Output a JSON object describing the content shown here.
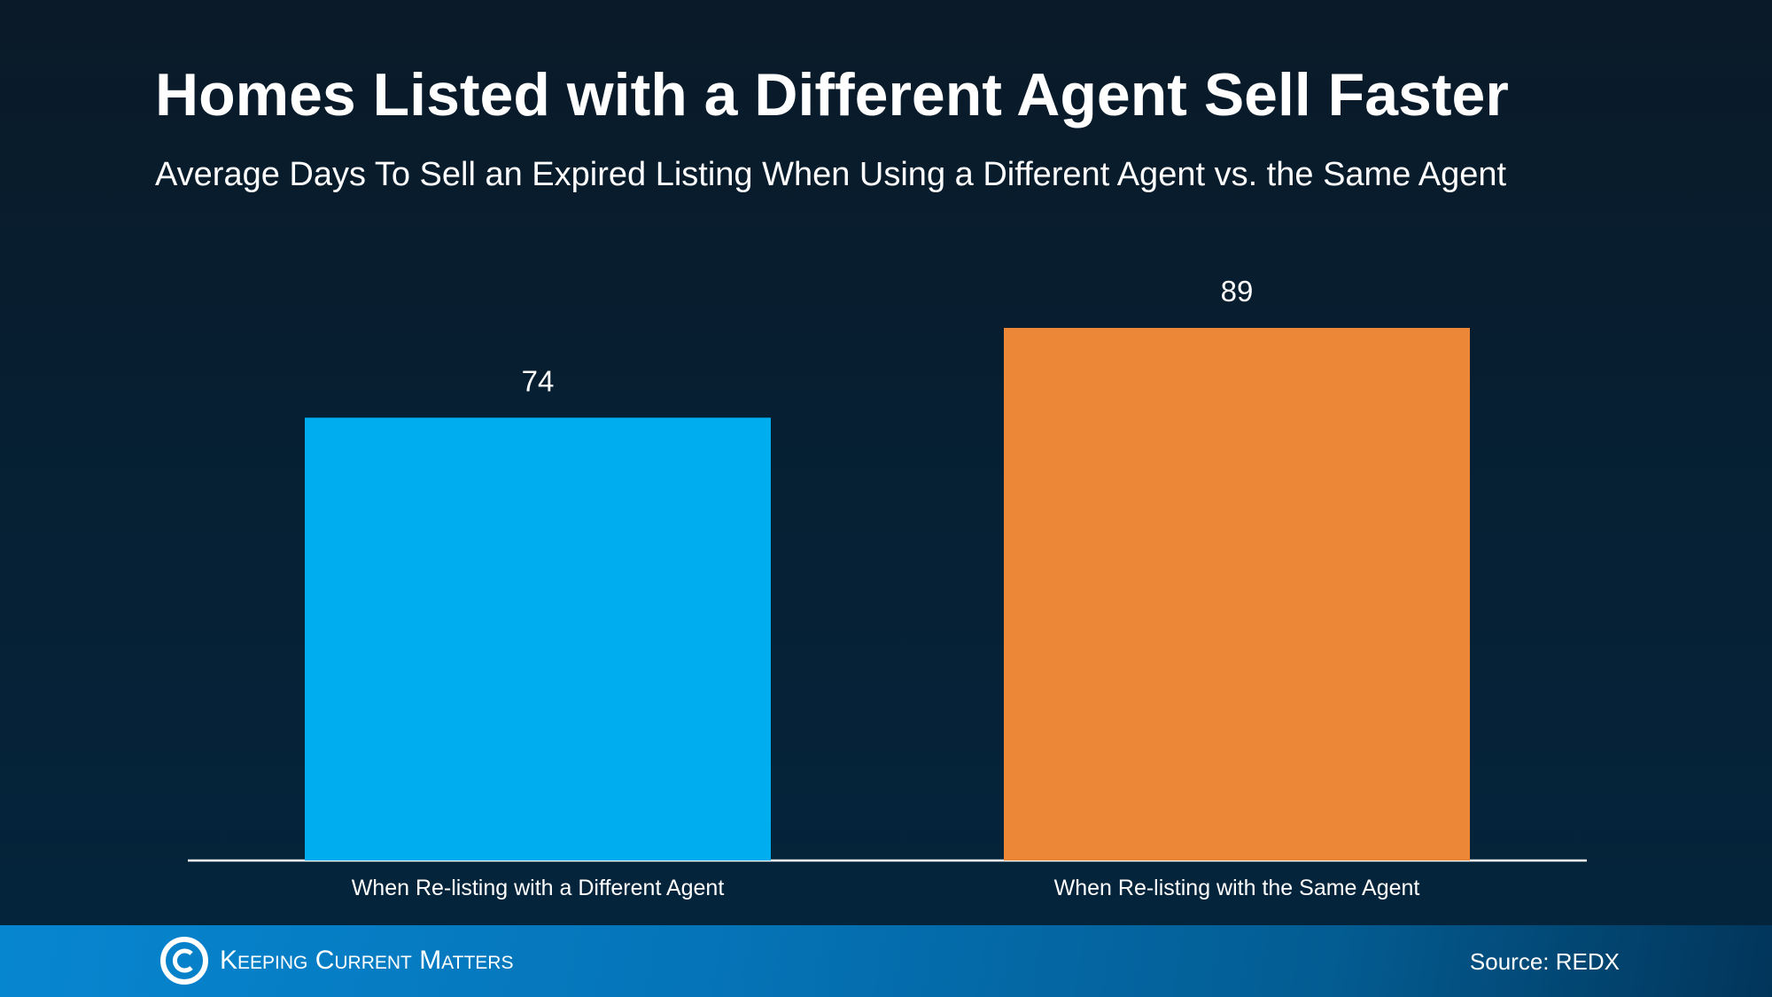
{
  "chart_data": {
    "type": "bar",
    "title": "Homes Listed with a Different Agent Sell Faster",
    "subtitle": "Average Days To Sell an Expired Listing When Using a Different Agent vs. the Same Agent",
    "categories": [
      "When Re-listing with a Different Agent",
      "When Re-listing with the Same Agent"
    ],
    "values": [
      74,
      89
    ],
    "data_labels": [
      "74",
      "89"
    ],
    "colors": [
      "#00aeef",
      "#eb8736"
    ],
    "xlabel": "",
    "ylabel": "",
    "ylim": [
      0,
      89
    ],
    "grid": false,
    "legend": "none"
  },
  "footer": {
    "logo_text": "Keeping Current Matters",
    "source": "Source: REDX"
  }
}
